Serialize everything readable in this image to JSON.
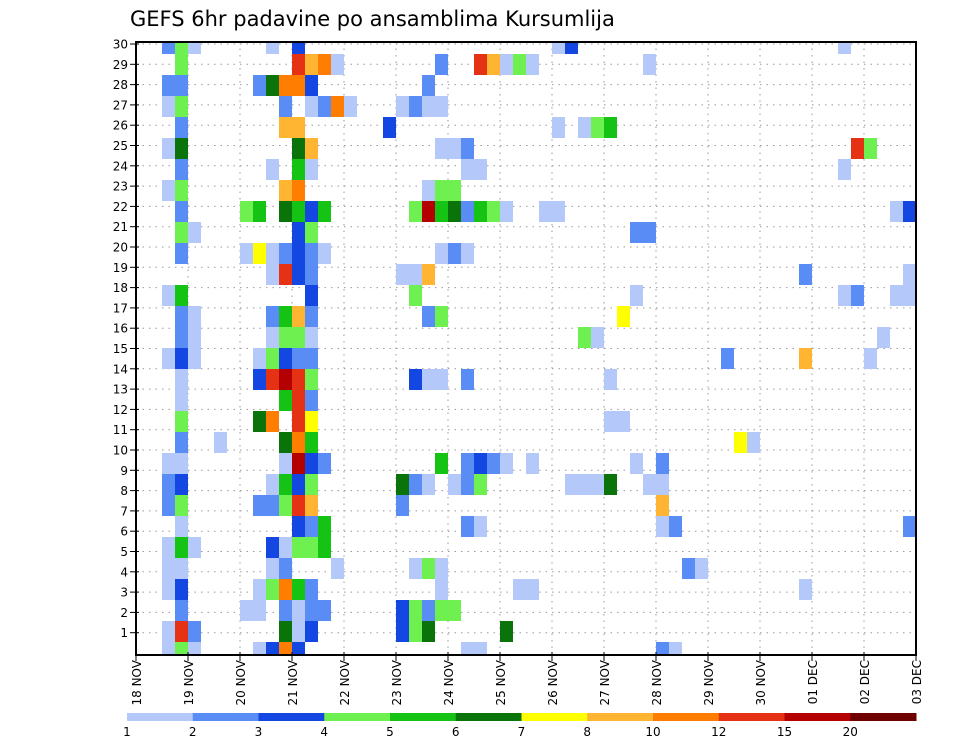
{
  "chart_data": {
    "type": "heatmap",
    "title": "GEFS 6hr padavine po ansamblima Kursumlija",
    "xlabel": "",
    "ylabel": "",
    "x_tick_labels": [
      "18 NOV",
      "19 NOV",
      "20 NOV",
      "21 NOV",
      "22 NOV",
      "23 NOV",
      "24 NOV",
      "25 NOV",
      "26 NOV",
      "27 NOV",
      "28 NOV",
      "29 NOV",
      "30 NOV",
      "01 DEC",
      "02 DEC",
      "03 DEC"
    ],
    "x_steps_per_day": 4,
    "x_step_count": 60,
    "y_tick_labels": [
      "1",
      "2",
      "3",
      "4",
      "5",
      "6",
      "7",
      "8",
      "9",
      "10",
      "11",
      "12",
      "13",
      "14",
      "15",
      "16",
      "17",
      "18",
      "19",
      "20",
      "21",
      "22",
      "23",
      "24",
      "25",
      "26",
      "27",
      "28",
      "29",
      "30"
    ],
    "row_count": 30,
    "grid": true,
    "legend": {
      "placement": "bottom",
      "labels": [
        "1",
        "2",
        "3",
        "4",
        "5",
        "6",
        "7",
        "8",
        "10",
        "12",
        "15",
        "20"
      ],
      "colors": [
        "#b4c8fa",
        "#5a8cf5",
        "#1446e1",
        "#6ef050",
        "#14c314",
        "#0a730a",
        "#ffff00",
        "#ffb432",
        "#ff7d00",
        "#e63214",
        "#b40000",
        "#6e0000"
      ]
    },
    "cells_note": "rows listed bottom to top; each cell is [time step index, color class index]",
    "rows": [
      [
        [
          2,
          0
        ],
        [
          3,
          3
        ],
        [
          4,
          0
        ],
        [
          9,
          0
        ],
        [
          10,
          2
        ],
        [
          11,
          8
        ],
        [
          12,
          2
        ],
        [
          25,
          0
        ],
        [
          26,
          0
        ],
        [
          40,
          1
        ],
        [
          41,
          0
        ]
      ],
      [
        [
          2,
          0
        ],
        [
          3,
          9
        ],
        [
          4,
          1
        ],
        [
          11,
          5
        ],
        [
          12,
          0
        ],
        [
          13,
          2
        ],
        [
          20,
          2
        ],
        [
          21,
          3
        ],
        [
          22,
          5
        ],
        [
          28,
          5
        ]
      ],
      [
        [
          3,
          1
        ],
        [
          8,
          0
        ],
        [
          9,
          0
        ],
        [
          11,
          1
        ],
        [
          12,
          0
        ],
        [
          13,
          1
        ],
        [
          14,
          1
        ],
        [
          20,
          2
        ],
        [
          21,
          3
        ],
        [
          22,
          1
        ],
        [
          23,
          3
        ],
        [
          24,
          3
        ]
      ],
      [
        [
          2,
          0
        ],
        [
          3,
          2
        ],
        [
          9,
          0
        ],
        [
          10,
          3
        ],
        [
          11,
          8
        ],
        [
          12,
          4
        ],
        [
          13,
          1
        ],
        [
          23,
          0
        ],
        [
          29,
          0
        ],
        [
          30,
          0
        ],
        [
          51,
          0
        ]
      ],
      [
        [
          2,
          0
        ],
        [
          3,
          0
        ],
        [
          10,
          0
        ],
        [
          11,
          1
        ],
        [
          15,
          0
        ],
        [
          21,
          0
        ],
        [
          22,
          3
        ],
        [
          23,
          0
        ],
        [
          42,
          1
        ],
        [
          43,
          0
        ]
      ],
      [
        [
          2,
          0
        ],
        [
          3,
          4
        ],
        [
          4,
          0
        ],
        [
          10,
          2
        ],
        [
          11,
          0
        ],
        [
          12,
          3
        ],
        [
          13,
          3
        ],
        [
          14,
          4
        ]
      ],
      [
        [
          3,
          0
        ],
        [
          12,
          2
        ],
        [
          13,
          1
        ],
        [
          14,
          4
        ],
        [
          25,
          1
        ],
        [
          26,
          0
        ],
        [
          40,
          0
        ],
        [
          41,
          1
        ],
        [
          59,
          1
        ]
      ],
      [
        [
          2,
          1
        ],
        [
          3,
          3
        ],
        [
          9,
          1
        ],
        [
          10,
          1
        ],
        [
          11,
          3
        ],
        [
          12,
          9
        ],
        [
          13,
          7
        ],
        [
          20,
          1
        ],
        [
          40,
          7
        ]
      ],
      [
        [
          2,
          1
        ],
        [
          3,
          2
        ],
        [
          10,
          0
        ],
        [
          11,
          4
        ],
        [
          12,
          2
        ],
        [
          13,
          3
        ],
        [
          20,
          5
        ],
        [
          21,
          1
        ],
        [
          22,
          0
        ],
        [
          24,
          0
        ],
        [
          25,
          1
        ],
        [
          26,
          3
        ],
        [
          33,
          0
        ],
        [
          34,
          0
        ],
        [
          35,
          0
        ],
        [
          36,
          5
        ],
        [
          39,
          0
        ],
        [
          40,
          0
        ]
      ],
      [
        [
          2,
          0
        ],
        [
          3,
          0
        ],
        [
          11,
          0
        ],
        [
          12,
          10
        ],
        [
          13,
          2
        ],
        [
          14,
          1
        ],
        [
          23,
          4
        ],
        [
          25,
          1
        ],
        [
          26,
          2
        ],
        [
          27,
          1
        ],
        [
          28,
          0
        ],
        [
          30,
          0
        ],
        [
          38,
          0
        ],
        [
          40,
          1
        ]
      ],
      [
        [
          3,
          1
        ],
        [
          6,
          0
        ],
        [
          11,
          5
        ],
        [
          12,
          8
        ],
        [
          13,
          4
        ],
        [
          46,
          6
        ],
        [
          47,
          0
        ]
      ],
      [
        [
          3,
          3
        ],
        [
          9,
          5
        ],
        [
          10,
          8
        ],
        [
          12,
          9
        ],
        [
          13,
          6
        ],
        [
          36,
          0
        ],
        [
          37,
          0
        ]
      ],
      [
        [
          3,
          0
        ],
        [
          11,
          4
        ],
        [
          12,
          9
        ],
        [
          13,
          1
        ]
      ],
      [
        [
          3,
          0
        ],
        [
          9,
          2
        ],
        [
          10,
          9
        ],
        [
          11,
          10
        ],
        [
          12,
          9
        ],
        [
          13,
          3
        ],
        [
          21,
          2
        ],
        [
          22,
          0
        ],
        [
          23,
          0
        ],
        [
          25,
          1
        ],
        [
          36,
          0
        ]
      ],
      [
        [
          2,
          0
        ],
        [
          3,
          2
        ],
        [
          4,
          0
        ],
        [
          9,
          0
        ],
        [
          10,
          3
        ],
        [
          11,
          2
        ],
        [
          12,
          1
        ],
        [
          13,
          1
        ],
        [
          45,
          1
        ],
        [
          51,
          7
        ],
        [
          56,
          0
        ]
      ],
      [
        [
          3,
          1
        ],
        [
          4,
          0
        ],
        [
          10,
          0
        ],
        [
          11,
          3
        ],
        [
          12,
          3
        ],
        [
          13,
          0
        ],
        [
          34,
          3
        ],
        [
          35,
          0
        ],
        [
          57,
          0
        ]
      ],
      [
        [
          3,
          1
        ],
        [
          4,
          0
        ],
        [
          10,
          1
        ],
        [
          11,
          4
        ],
        [
          12,
          7
        ],
        [
          13,
          1
        ],
        [
          22,
          1
        ],
        [
          23,
          3
        ],
        [
          37,
          6
        ]
      ],
      [
        [
          2,
          0
        ],
        [
          3,
          4
        ],
        [
          13,
          2
        ],
        [
          21,
          3
        ],
        [
          38,
          0
        ],
        [
          54,
          0
        ],
        [
          55,
          1
        ],
        [
          58,
          0
        ],
        [
          59,
          0
        ]
      ],
      [
        [
          10,
          0
        ],
        [
          11,
          9
        ],
        [
          12,
          2
        ],
        [
          13,
          1
        ],
        [
          20,
          0
        ],
        [
          21,
          0
        ],
        [
          22,
          7
        ],
        [
          51,
          1
        ],
        [
          59,
          0
        ]
      ],
      [
        [
          3,
          1
        ],
        [
          8,
          0
        ],
        [
          9,
          6
        ],
        [
          10,
          0
        ],
        [
          11,
          1
        ],
        [
          12,
          2
        ],
        [
          13,
          1
        ],
        [
          14,
          0
        ],
        [
          23,
          0
        ],
        [
          24,
          1
        ],
        [
          25,
          0
        ]
      ],
      [
        [
          3,
          3
        ],
        [
          4,
          0
        ],
        [
          12,
          2
        ],
        [
          13,
          3
        ],
        [
          38,
          1
        ],
        [
          39,
          1
        ]
      ],
      [
        [
          3,
          1
        ],
        [
          8,
          3
        ],
        [
          9,
          4
        ],
        [
          11,
          5
        ],
        [
          12,
          4
        ],
        [
          13,
          2
        ],
        [
          14,
          4
        ],
        [
          21,
          3
        ],
        [
          22,
          10
        ],
        [
          23,
          4
        ],
        [
          24,
          5
        ],
        [
          25,
          1
        ],
        [
          26,
          4
        ],
        [
          27,
          3
        ],
        [
          28,
          0
        ],
        [
          31,
          0
        ],
        [
          32,
          0
        ],
        [
          58,
          0
        ],
        [
          59,
          2
        ]
      ],
      [
        [
          2,
          0
        ],
        [
          3,
          3
        ],
        [
          11,
          7
        ],
        [
          12,
          8
        ],
        [
          22,
          0
        ],
        [
          23,
          3
        ],
        [
          24,
          3
        ]
      ],
      [
        [
          3,
          1
        ],
        [
          10,
          0
        ],
        [
          12,
          4
        ],
        [
          13,
          0
        ],
        [
          25,
          0
        ],
        [
          26,
          0
        ],
        [
          54,
          0
        ]
      ],
      [
        [
          2,
          0
        ],
        [
          3,
          5
        ],
        [
          12,
          5
        ],
        [
          13,
          7
        ],
        [
          23,
          0
        ],
        [
          24,
          0
        ],
        [
          25,
          1
        ],
        [
          55,
          9
        ],
        [
          56,
          3
        ]
      ],
      [
        [
          3,
          1
        ],
        [
          11,
          7
        ],
        [
          12,
          7
        ],
        [
          19,
          2
        ],
        [
          32,
          0
        ],
        [
          34,
          0
        ],
        [
          35,
          3
        ],
        [
          36,
          4
        ]
      ],
      [
        [
          2,
          0
        ],
        [
          3,
          3
        ],
        [
          11,
          1
        ],
        [
          13,
          0
        ],
        [
          14,
          1
        ],
        [
          15,
          8
        ],
        [
          16,
          0
        ],
        [
          20,
          0
        ],
        [
          21,
          1
        ],
        [
          22,
          0
        ],
        [
          23,
          0
        ]
      ],
      [
        [
          2,
          1
        ],
        [
          3,
          1
        ],
        [
          9,
          1
        ],
        [
          10,
          5
        ],
        [
          11,
          8
        ],
        [
          12,
          8
        ],
        [
          13,
          2
        ],
        [
          22,
          1
        ]
      ],
      [
        [
          3,
          3
        ],
        [
          12,
          9
        ],
        [
          13,
          7
        ],
        [
          14,
          8
        ],
        [
          15,
          0
        ],
        [
          23,
          1
        ],
        [
          26,
          9
        ],
        [
          27,
          7
        ],
        [
          28,
          0
        ],
        [
          29,
          3
        ],
        [
          30,
          0
        ],
        [
          39,
          0
        ]
      ],
      [
        [
          2,
          1
        ],
        [
          3,
          3
        ],
        [
          4,
          0
        ],
        [
          10,
          0
        ],
        [
          12,
          2
        ],
        [
          32,
          0
        ],
        [
          33,
          2
        ],
        [
          54,
          0
        ]
      ]
    ]
  }
}
